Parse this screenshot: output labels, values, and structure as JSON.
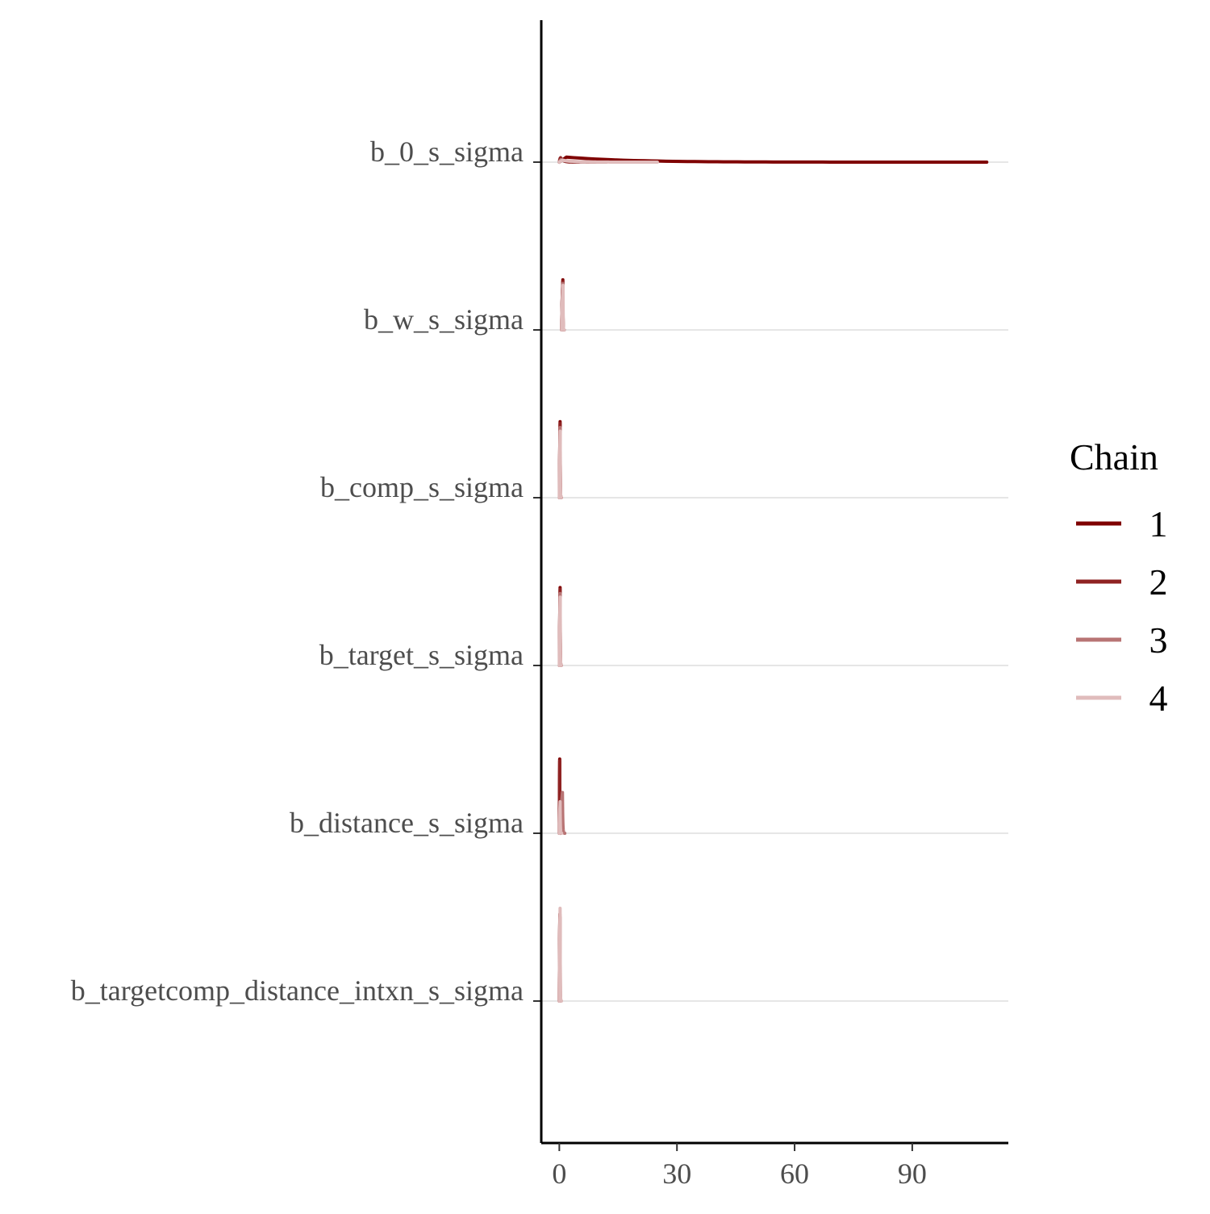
{
  "chart_data": {
    "type": "ridgeline",
    "title": "",
    "xlabel": "",
    "ylabel": "",
    "xlim": [
      -4.6,
      114.5
    ],
    "x_ticks": [
      0,
      30,
      60,
      90
    ],
    "x_tick_labels": [
      "0",
      "30",
      "60",
      "90"
    ],
    "grid": "horizontal baselines only",
    "legend_position": "right",
    "legend": {
      "title": "Chain",
      "entries": [
        {
          "label": "1",
          "color": "#7f0000"
        },
        {
          "label": "2",
          "color": "#8f2222"
        },
        {
          "label": "3",
          "color": "#b87474"
        },
        {
          "label": "4",
          "color": "#e0bcbc"
        }
      ]
    },
    "parameters": [
      "b_0_s_sigma",
      "b_w_s_sigma",
      "b_comp_s_sigma",
      "b_target_s_sigma",
      "b_distance_s_sigma",
      "b_targetcomp_distance_intxn_s_sigma"
    ],
    "series": [
      {
        "parameter": "b_0_s_sigma",
        "chains": [
          {
            "chain": "1",
            "x_range": [
              0.0,
              109.0
            ],
            "peak_x": 0.3,
            "peak_height": 0.06
          },
          {
            "chain": "2",
            "x_range": [
              0.0,
              5.0
            ],
            "peak_x": 0.3,
            "peak_height": 0.05
          },
          {
            "chain": "3",
            "x_range": [
              0.0,
              12.0
            ],
            "peak_x": 0.5,
            "peak_height": 0.03
          },
          {
            "chain": "4",
            "x_range": [
              0.0,
              25.0
            ],
            "peak_x": 0.8,
            "peak_height": 0.02
          }
        ]
      },
      {
        "parameter": "b_w_s_sigma",
        "chains": [
          {
            "chain": "1",
            "x_range": [
              0.6,
              1.2
            ],
            "peak_x": 0.9,
            "peak_height": 0.54
          },
          {
            "chain": "2",
            "x_range": [
              0.6,
              1.2
            ],
            "peak_x": 0.9,
            "peak_height": 0.52
          },
          {
            "chain": "3",
            "x_range": [
              0.6,
              1.2
            ],
            "peak_x": 0.9,
            "peak_height": 0.5
          },
          {
            "chain": "4",
            "x_range": [
              0.6,
              1.2
            ],
            "peak_x": 0.95,
            "peak_height": 0.48
          }
        ]
      },
      {
        "parameter": "b_comp_s_sigma",
        "chains": [
          {
            "chain": "1",
            "x_range": [
              0.05,
              0.5
            ],
            "peak_x": 0.2,
            "peak_height": 0.82
          },
          {
            "chain": "2",
            "x_range": [
              0.05,
              0.5
            ],
            "peak_x": 0.2,
            "peak_height": 0.8
          },
          {
            "chain": "3",
            "x_range": [
              0.05,
              0.5
            ],
            "peak_x": 0.22,
            "peak_height": 0.77
          },
          {
            "chain": "4",
            "x_range": [
              0.05,
              0.5
            ],
            "peak_x": 0.22,
            "peak_height": 0.73
          }
        ]
      },
      {
        "parameter": "b_target_s_sigma",
        "chains": [
          {
            "chain": "1",
            "x_range": [
              0.05,
              0.5
            ],
            "peak_x": 0.2,
            "peak_height": 0.84
          },
          {
            "chain": "2",
            "x_range": [
              0.05,
              0.5
            ],
            "peak_x": 0.2,
            "peak_height": 0.82
          },
          {
            "chain": "3",
            "x_range": [
              0.05,
              0.5
            ],
            "peak_x": 0.22,
            "peak_height": 0.79
          },
          {
            "chain": "4",
            "x_range": [
              0.05,
              0.5
            ],
            "peak_x": 0.22,
            "peak_height": 0.75
          }
        ]
      },
      {
        "parameter": "b_distance_s_sigma",
        "chains": [
          {
            "chain": "1",
            "x_range": [
              0.0,
              0.3
            ],
            "peak_x": 0.1,
            "peak_height": 0.8
          },
          {
            "chain": "2",
            "x_range": [
              0.0,
              0.3
            ],
            "peak_x": 0.1,
            "peak_height": 0.78
          },
          {
            "chain": "3",
            "x_range": [
              0.2,
              1.4
            ],
            "peak_x": 0.8,
            "peak_height": 0.44
          },
          {
            "chain": "4",
            "x_range": [
              0.0,
              0.6
            ],
            "peak_x": 0.2,
            "peak_height": 0.34
          }
        ]
      },
      {
        "parameter": "b_targetcomp_distance_intxn_s_sigma",
        "chains": [
          {
            "chain": "1",
            "x_range": [
              0.0,
              0.4
            ],
            "peak_x": 0.15,
            "peak_height": 0.95
          },
          {
            "chain": "2",
            "x_range": [
              0.0,
              0.4
            ],
            "peak_x": 0.15,
            "peak_height": 0.93
          },
          {
            "chain": "3",
            "x_range": [
              0.0,
              0.5
            ],
            "peak_x": 0.2,
            "peak_height": 0.9
          },
          {
            "chain": "4",
            "x_range": [
              0.0,
              0.5
            ],
            "peak_x": 0.2,
            "peak_height": 1.0
          }
        ]
      }
    ]
  }
}
